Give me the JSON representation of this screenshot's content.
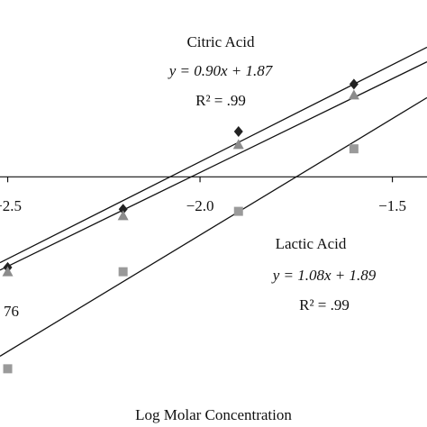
{
  "chart_data": {
    "type": "scatter",
    "x": [
      -2.5,
      -2.2,
      -1.9,
      -1.6
    ],
    "series": [
      {
        "marker": "diamond",
        "color": "#222222",
        "values": [
          -0.42,
          -0.15,
          0.21,
          0.43
        ],
        "slope": 0.9,
        "intercept": 1.87
      },
      {
        "marker": "triangle",
        "color": "#8c8c8c",
        "values": [
          -0.44,
          -0.18,
          0.15,
          0.38
        ],
        "slope": 0.87,
        "intercept": 1.76
      },
      {
        "marker": "square",
        "color": "#9a9a9a",
        "values": [
          -0.89,
          -0.44,
          -0.16,
          0.13
        ],
        "slope": 1.08,
        "intercept": 1.89
      }
    ],
    "xlim": [
      -2.52,
      -1.41
    ],
    "ylim": [
      -1.16,
      0.82
    ],
    "xticks": [
      {
        "value": -2.5,
        "label": "−2.5"
      },
      {
        "value": -2.0,
        "label": "−2.0"
      },
      {
        "value": -1.5,
        "label": "−1.5"
      }
    ],
    "x_label": "Log Molar Concentration",
    "annotations": [
      "Citric Acid",
      "y = 0.90x + 1.87",
      "R² = .99",
      "Lactic Acid",
      "y = 1.08x + 1.89",
      "R² = .99",
      "76"
    ]
  }
}
